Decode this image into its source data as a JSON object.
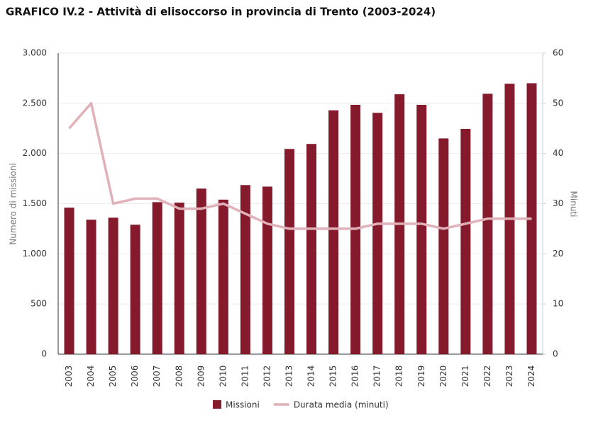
{
  "chart_data": {
    "type": "bar-line",
    "title": "GRAFICO IV.2 - Attività di elisoccorso in provincia di Trento (2003-2024)",
    "y_label": "Numero di missioni",
    "y2_label": "Minuti",
    "categories": [
      "2003",
      "2004",
      "2005",
      "2006",
      "2007",
      "2008",
      "2009",
      "2010",
      "2011",
      "2012",
      "2013",
      "2014",
      "2015",
      "2016",
      "2017",
      "2018",
      "2019",
      "2020",
      "2021",
      "2022",
      "2023",
      "2024"
    ],
    "series": [
      {
        "name": "Missioni",
        "type": "bar",
        "color": "#841a2b",
        "values": [
          1460,
          1340,
          1360,
          1290,
          1515,
          1510,
          1650,
          1540,
          1685,
          1670,
          2045,
          2095,
          2430,
          2485,
          2405,
          2590,
          2485,
          2150,
          2245,
          2595,
          2695,
          2700
        ]
      },
      {
        "name": "Durata media (minuti)",
        "type": "line",
        "axis": "y2",
        "color": "#e0b1b8",
        "values": [
          45,
          50,
          30,
          31,
          31,
          29,
          29,
          30,
          28,
          26,
          25,
          25,
          25,
          25,
          26,
          26,
          26,
          25,
          26,
          27,
          27,
          27
        ]
      }
    ],
    "ylim": [
      0,
      3000
    ],
    "yticks": [
      0,
      500,
      {
        "value": 1000,
        "label": "1.000"
      },
      {
        "value": 1500,
        "label": "1.500"
      },
      {
        "value": 2000,
        "label": "2.000"
      },
      {
        "value": 2500,
        "label": "2.500"
      },
      {
        "value": 3000,
        "label": "3.000"
      }
    ],
    "y2lim": [
      0,
      60
    ],
    "y2ticks": [
      0,
      10,
      20,
      30,
      40,
      50,
      60
    ],
    "grid": true
  }
}
